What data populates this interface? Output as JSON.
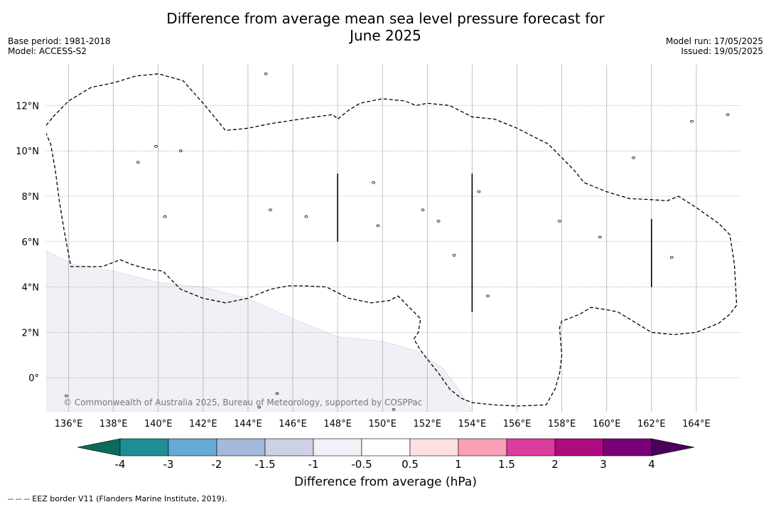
{
  "title_line1": "Difference from average mean sea level pressure forecast for",
  "title_line2": "June 2025",
  "base_period": "Base period: 1981-2018",
  "model": "Model: ACCESS-S2",
  "model_run": "Model run: 17/05/2025",
  "issued": "Issued: 19/05/2025",
  "copyright": "© Commonwealth of Australia 2025, Bureau of Meteorology, supported by COSPPac",
  "footer_legend": "-- -- -- EEZ border V11 (Flanders Marine Institute, 2019).",
  "colorbar": {
    "title": "Difference from average (hPa)",
    "ticks": [
      "-4",
      "-3",
      "-2",
      "-1.5",
      "-1",
      "-0.5",
      "0.5",
      "1",
      "1.5",
      "2",
      "3",
      "4"
    ],
    "colors": [
      "#1e8e96",
      "#67aad3",
      "#a4b8d9",
      "#ced0e6",
      "#f3eff6",
      "#ffffff",
      "#fde0e0",
      "#f8a0b6",
      "#dc3c9c",
      "#ad0b7e",
      "#7a0077"
    ],
    "under_color": "#0a6b5c",
    "over_color": "#4a005a"
  },
  "map": {
    "lon_range": [
      135,
      166
    ],
    "lat_range": [
      -1.5,
      13.8
    ],
    "lon_ticks": [
      "136°E",
      "138°E",
      "140°E",
      "142°E",
      "144°E",
      "146°E",
      "148°E",
      "150°E",
      "152°E",
      "154°E",
      "156°E",
      "158°E",
      "160°E",
      "162°E",
      "164°E"
    ],
    "lat_ticks": [
      "0°",
      "2°N",
      "4°N",
      "6°N",
      "8°N",
      "10°N",
      "12°N"
    ],
    "anomaly_fill_color": "#f3eff6",
    "anomaly_region_lonlat": [
      [
        135,
        5.6
      ],
      [
        136.2,
        5.0
      ],
      [
        138,
        4.7
      ],
      [
        140,
        4.2
      ],
      [
        142,
        4.0
      ],
      [
        144,
        3.5
      ],
      [
        146,
        2.6
      ],
      [
        148,
        1.8
      ],
      [
        150,
        1.6
      ],
      [
        151.5,
        1.2
      ],
      [
        152.7,
        0.4
      ],
      [
        153.4,
        -0.5
      ],
      [
        154,
        -1.5
      ],
      [
        135,
        -1.5
      ]
    ],
    "eez_dashes_lonlat": [
      [
        [
          135.3,
          11.5
        ],
        [
          136,
          12.2
        ],
        [
          137,
          12.8
        ],
        [
          138,
          13.0
        ],
        [
          139,
          13.3
        ],
        [
          140,
          13.4
        ],
        [
          141.1,
          13.1
        ],
        [
          142,
          12.1
        ],
        [
          143,
          10.9
        ],
        [
          144,
          11.0
        ],
        [
          145,
          11.2
        ],
        [
          146,
          11.35
        ],
        [
          147,
          11.5
        ],
        [
          147.8,
          11.6
        ],
        [
          148,
          11.4
        ],
        [
          148.5,
          11.8
        ],
        [
          149,
          12.1
        ],
        [
          150,
          12.3
        ],
        [
          151,
          12.2
        ],
        [
          151.5,
          12.0
        ],
        [
          152,
          12.1
        ],
        [
          153,
          12.0
        ],
        [
          154,
          11.5
        ],
        [
          155,
          11.4
        ],
        [
          156,
          11.0
        ],
        [
          157,
          10.5
        ],
        [
          157.4,
          10.3
        ],
        [
          158,
          9.7
        ],
        [
          158.5,
          9.2
        ],
        [
          159,
          8.6
        ],
        [
          160,
          8.2
        ],
        [
          161,
          7.9
        ],
        [
          162,
          7.85
        ],
        [
          162.7,
          7.8
        ],
        [
          163.2,
          8.0
        ],
        [
          164,
          7.5
        ],
        [
          165,
          6.8
        ],
        [
          165.5,
          6.3
        ],
        [
          165.7,
          5.0
        ],
        [
          165.8,
          3.2
        ],
        [
          165.5,
          2.8
        ],
        [
          165,
          2.4
        ],
        [
          164,
          2.0
        ],
        [
          163,
          1.9
        ],
        [
          162,
          2.0
        ],
        [
          161,
          2.6
        ],
        [
          160.5,
          2.9
        ],
        [
          160,
          3.0
        ],
        [
          159.3,
          3.1
        ],
        [
          158.8,
          2.8
        ],
        [
          158.3,
          2.6
        ],
        [
          158,
          2.5
        ],
        [
          157.9,
          2.2
        ],
        [
          158,
          1.0
        ],
        [
          157.9,
          0.2
        ],
        [
          157.7,
          -0.5
        ],
        [
          157.3,
          -1.2
        ],
        [
          156,
          -1.25
        ],
        [
          155,
          -1.2
        ],
        [
          154,
          -1.1
        ],
        [
          153.5,
          -0.9
        ],
        [
          153,
          -0.5
        ],
        [
          152.5,
          0.2
        ],
        [
          151.7,
          1.2
        ],
        [
          151.4,
          1.7
        ],
        [
          151.6,
          2.0
        ],
        [
          151.7,
          2.6
        ],
        [
          151.3,
          3.0
        ],
        [
          150.7,
          3.6
        ],
        [
          150.3,
          3.4
        ],
        [
          149.5,
          3.3
        ],
        [
          148.5,
          3.5
        ],
        [
          147.5,
          4.0
        ],
        [
          146.5,
          4.05
        ],
        [
          145.8,
          4.05
        ],
        [
          145,
          3.9
        ],
        [
          144,
          3.5
        ],
        [
          143,
          3.3
        ],
        [
          142,
          3.5
        ],
        [
          141,
          3.9
        ],
        [
          140.5,
          4.4
        ],
        [
          140.2,
          4.7
        ],
        [
          139.5,
          4.8
        ],
        [
          138.8,
          5.0
        ],
        [
          138.3,
          5.2
        ],
        [
          137.5,
          4.9
        ],
        [
          136.9,
          4.9
        ],
        [
          136.1,
          4.9
        ],
        [
          135.8,
          6.5
        ],
        [
          135.6,
          7.7
        ],
        [
          135.4,
          9.2
        ],
        [
          135.2,
          10.3
        ],
        [
          134.9,
          11.0
        ],
        [
          135.3,
          11.5
        ]
      ]
    ],
    "eez_segments_lonlat": [
      [
        [
          148,
          9.0
        ],
        [
          148,
          6.0
        ]
      ],
      [
        [
          154,
          9.0
        ],
        [
          154,
          2.9
        ]
      ],
      [
        [
          162,
          7.0
        ],
        [
          162,
          4.0
        ]
      ]
    ],
    "islands_lonlat": [
      [
        144.8,
        13.4
      ],
      [
        139.1,
        9.5
      ],
      [
        151.8,
        7.4
      ],
      [
        157.9,
        6.9
      ],
      [
        154.3,
        8.2
      ],
      [
        162.9,
        5.3
      ],
      [
        145,
        7.4
      ],
      [
        141,
        10.0
      ],
      [
        149.6,
        8.6
      ],
      [
        139.9,
        10.2
      ],
      [
        154.7,
        3.6
      ],
      [
        153.2,
        5.4
      ],
      [
        159.7,
        6.2
      ],
      [
        161.2,
        9.7
      ],
      [
        163.8,
        11.3
      ],
      [
        165.4,
        11.6
      ],
      [
        140.3,
        7.1
      ],
      [
        146.6,
        7.1
      ],
      [
        149.8,
        6.7
      ],
      [
        152.5,
        6.9
      ],
      [
        135.9,
        -0.8
      ],
      [
        144.5,
        -1.3
      ],
      [
        150.5,
        -1.4
      ],
      [
        145.3,
        -0.7
      ]
    ]
  }
}
